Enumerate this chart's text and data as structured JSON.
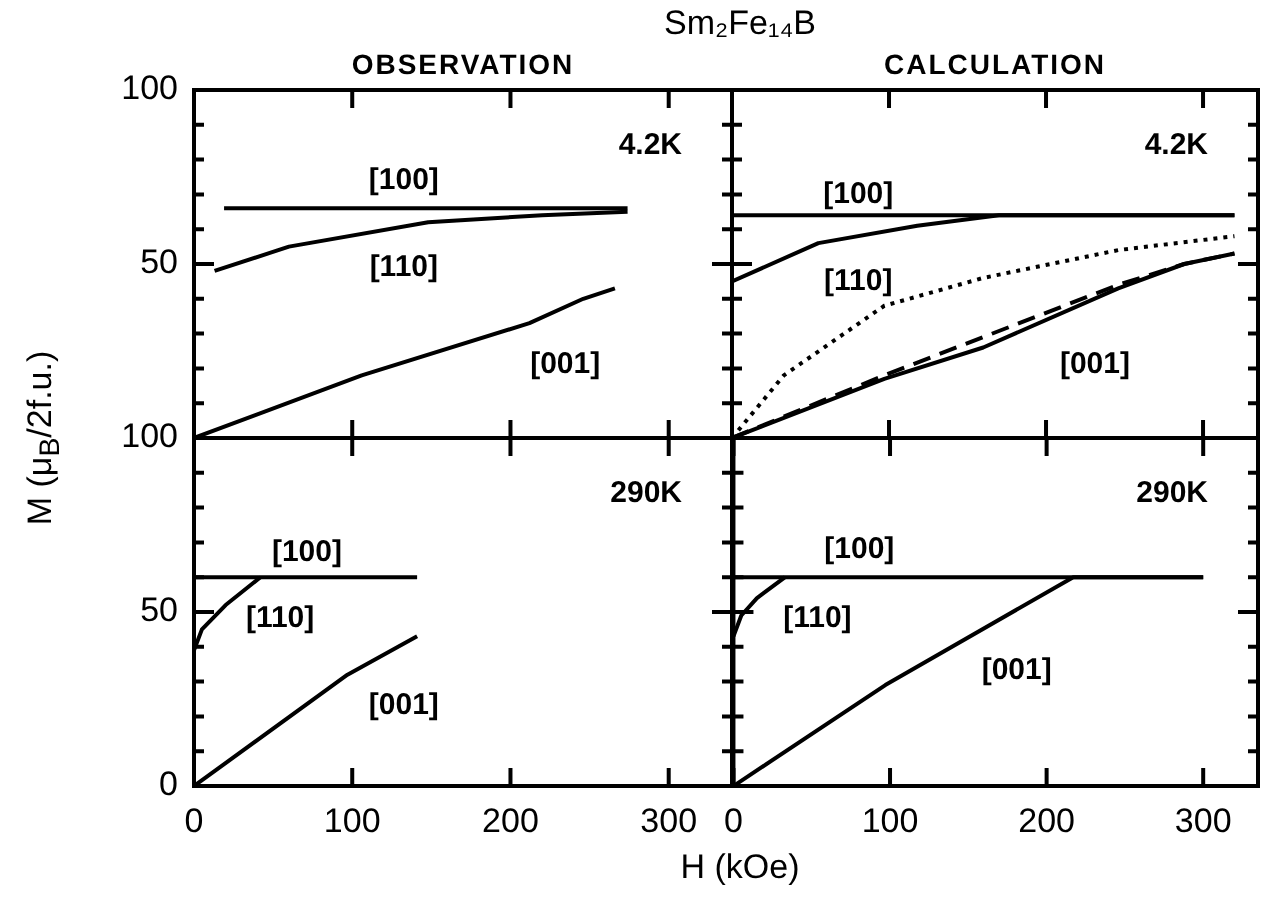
{
  "chart_data": [
    {
      "type": "line",
      "title": "Sm₂Fe₁₄B",
      "subtitle": "OBSERVATION",
      "ylabel": "M (μ$_{B}$/2f.u.)",
      "xlim": [
        0,
        340
      ],
      "xticks": [
        0,
        100,
        200,
        300
      ],
      "ylim": [
        0,
        100
      ],
      "yticks": [
        {
          "value": 0,
          "label": null
        },
        {
          "value": 10,
          "label": null
        },
        {
          "value": 20,
          "label": null
        },
        {
          "value": 30,
          "label": null
        },
        {
          "value": 40,
          "label": null
        },
        50,
        {
          "value": 60,
          "label": null
        },
        {
          "value": 70,
          "label": null
        },
        {
          "value": 80,
          "label": null
        },
        {
          "value": 90,
          "label": null
        },
        100
      ],
      "tick_labels": "y",
      "marker": "none",
      "series": [
        {
          "color": "#000000",
          "x": [
            19,
            274
          ],
          "values": [
            66,
            66
          ]
        },
        {
          "color": "#000000",
          "x": [
            13,
            60,
            148,
            220,
            274
          ],
          "values": [
            48,
            55,
            62,
            64,
            65
          ]
        },
        {
          "color": "#000000",
          "x": [
            0,
            106,
            212,
            246,
            266
          ],
          "values": [
            0,
            18,
            33,
            40,
            43
          ]
        }
      ],
      "annotations": [
        "4.2K",
        "[100]",
        "[110]",
        "[001]"
      ]
    },
    {
      "type": "line",
      "subtitle": "CALCULATION",
      "xlim": [
        0,
        335
      ],
      "xticks": [
        0,
        100,
        200,
        300
      ],
      "ylim": [
        0,
        100
      ],
      "yticks": [
        {
          "value": 0,
          "label": null
        },
        {
          "value": 10,
          "label": null
        },
        {
          "value": 20,
          "label": null
        },
        {
          "value": 30,
          "label": null
        },
        {
          "value": 40,
          "label": null
        },
        {
          "value": 50,
          "label": null
        },
        {
          "value": 60,
          "label": null
        },
        {
          "value": 70,
          "label": null
        },
        {
          "value": 80,
          "label": null
        },
        {
          "value": 90,
          "label": null
        },
        {
          "value": 100,
          "label": null
        }
      ],
      "tick_labels": false,
      "marker": "none",
      "series": [
        {
          "color": "#000000",
          "x": [
            0,
            320
          ],
          "values": [
            64,
            64
          ]
        },
        {
          "color": "#000000",
          "x": [
            0,
            55,
            118,
            170,
            320
          ],
          "values": [
            45,
            56,
            61,
            64,
            64
          ]
        },
        {
          "color": "#000000",
          "line_style": "dotted",
          "x": [
            0,
            33,
            97,
            160,
            246,
            320
          ],
          "values": [
            0,
            18,
            38,
            46,
            54,
            58
          ]
        },
        {
          "color": "#000000",
          "line_style": "dashed",
          "x": [
            0,
            97,
            160,
            246,
            288,
            320
          ],
          "values": [
            0,
            18,
            29,
            44,
            50,
            53
          ]
        },
        {
          "color": "#000000",
          "x": [
            0,
            97,
            160,
            246,
            288,
            320
          ],
          "values": [
            0,
            17,
            26,
            43,
            50,
            53
          ]
        }
      ],
      "annotations": [
        "4.2K",
        "[100]",
        "[110]",
        "[001]"
      ]
    },
    {
      "type": "line",
      "xlabel": "H (kOe)",
      "xlim": [
        0,
        340
      ],
      "xticks": [
        0,
        100,
        200,
        300
      ],
      "ylim": [
        0,
        100
      ],
      "yticks": [
        0,
        {
          "value": 10,
          "label": null
        },
        {
          "value": 20,
          "label": null
        },
        {
          "value": 30,
          "label": null
        },
        {
          "value": 40,
          "label": null
        },
        50,
        {
          "value": 60,
          "label": null
        },
        {
          "value": 70,
          "label": null
        },
        {
          "value": 80,
          "label": null
        },
        {
          "value": 90,
          "label": null
        },
        100
      ],
      "marker": "none",
      "series": [
        {
          "color": "#000000",
          "x": [
            0,
            42,
            141
          ],
          "values": [
            60,
            60,
            60
          ]
        },
        {
          "color": "#000000",
          "x": [
            0,
            5,
            20,
            42
          ],
          "values": [
            39,
            45,
            52,
            60
          ]
        },
        {
          "color": "#000000",
          "x": [
            0,
            97,
            141
          ],
          "values": [
            0,
            32,
            43
          ]
        }
      ],
      "annotations": [
        "290K",
        "[100]",
        "[110]",
        "[001]"
      ]
    },
    {
      "type": "line",
      "xlim": [
        0,
        335
      ],
      "xticks": [
        0,
        100,
        200,
        300
      ],
      "ylim": [
        0,
        100
      ],
      "yticks": [
        {
          "value": 0,
          "label": null
        },
        {
          "value": 10,
          "label": null
        },
        {
          "value": 20,
          "label": null
        },
        {
          "value": 30,
          "label": null
        },
        {
          "value": 40,
          "label": null
        },
        {
          "value": 50,
          "label": null
        },
        {
          "value": 60,
          "label": null
        },
        {
          "value": 70,
          "label": null
        },
        {
          "value": 80,
          "label": null
        },
        {
          "value": 90,
          "label": null
        },
        {
          "value": 100,
          "label": null
        }
      ],
      "tick_labels": "x",
      "marker": "none",
      "series": [
        {
          "color": "#000000",
          "x": [
            0,
            300
          ],
          "values": [
            60,
            60
          ]
        },
        {
          "color": "#000000",
          "x": [
            0,
            5,
            15,
            33
          ],
          "values": [
            43,
            49,
            54,
            60
          ]
        },
        {
          "color": "#000000",
          "x": [
            0,
            97,
            217,
            300
          ],
          "values": [
            0,
            29,
            60,
            60
          ]
        }
      ],
      "annotations": [
        "290K",
        "[100]",
        "[110]",
        "[001]"
      ]
    }
  ]
}
